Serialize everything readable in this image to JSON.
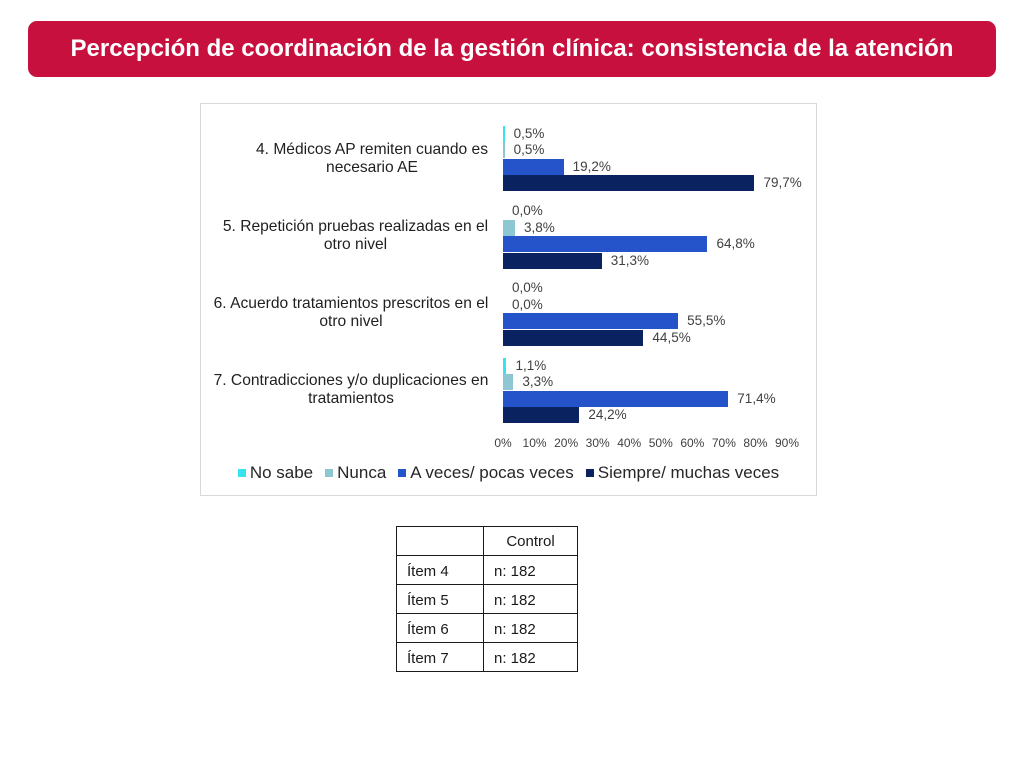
{
  "header": {
    "title": "Percepción de coordinación de la gestión clínica: consistencia de la atención"
  },
  "colors": {
    "title_bar": "#C8103F"
  },
  "chart_data": {
    "type": "bar",
    "horizontal": true,
    "categories": [
      "4. Médicos AP remiten cuando es necesario AE",
      "5. Repetición pruebas realizadas en el otro nivel",
      "6. Acuerdo tratamientos prescritos en el otro nivel",
      "7. Contradicciones y/o duplicaciones en tratamientos"
    ],
    "series": [
      {
        "name": "No sabe",
        "color": "#38E4EC",
        "values": [
          0.5,
          0.0,
          0.0,
          1.1
        ],
        "labels": [
          "0,5%",
          "0,0%",
          "0,0%",
          "1,1%"
        ]
      },
      {
        "name": "Nunca",
        "color": "#8DC8D2",
        "values": [
          0.5,
          3.8,
          0.0,
          3.3
        ],
        "labels": [
          "0,5%",
          "3,8%",
          "0,0%",
          "3,3%"
        ]
      },
      {
        "name": "A veces/ pocas veces",
        "color": "#2553C9",
        "values": [
          19.2,
          64.8,
          55.5,
          71.4
        ],
        "labels": [
          "19,2%",
          "64,8%",
          "55,5%",
          "71,4%"
        ]
      },
      {
        "name": "Siempre/ muchas veces",
        "color": "#0B2260",
        "values": [
          79.7,
          31.3,
          44.5,
          24.2
        ],
        "labels": [
          "79,7%",
          "31,3%",
          "44,5%",
          "24,2%"
        ]
      }
    ],
    "xlim": [
      0,
      90
    ],
    "x_ticks": [
      0,
      10,
      20,
      30,
      40,
      50,
      60,
      70,
      80,
      90
    ],
    "x_tick_labels": [
      "0%",
      "10%",
      "20%",
      "30%",
      "40%",
      "50%",
      "60%",
      "70%",
      "80%",
      "90%"
    ],
    "grid": false,
    "legend": "bottom"
  },
  "table": {
    "header": [
      "",
      "Control"
    ],
    "rows": [
      [
        "Ítem 4",
        "n: 182"
      ],
      [
        "Ítem 5",
        "n: 182"
      ],
      [
        "Ítem 6",
        "n: 182"
      ],
      [
        "Ítem 7",
        "n: 182"
      ]
    ]
  }
}
